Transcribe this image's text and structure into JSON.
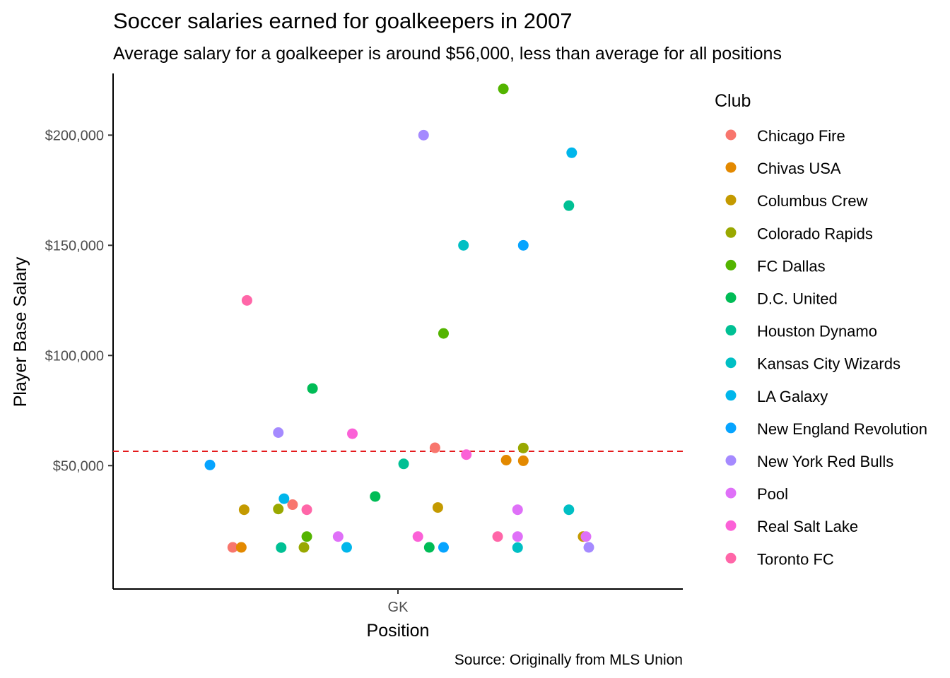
{
  "chart_data": {
    "type": "scatter",
    "title": "Soccer salaries earned for goalkeepers in 2007",
    "subtitle": "Average salary for a goalkeeper is around $56,000, less than average for all positions",
    "caption": "Source: Originally from MLS Union",
    "xlabel": "Position",
    "ylabel": "Player Base Salary",
    "x_categories": [
      "GK"
    ],
    "y_ticks": [
      50000,
      100000,
      150000,
      200000
    ],
    "y_tick_labels": [
      "$50,000",
      "$100,000",
      "$150,000",
      "$200,000"
    ],
    "ylim": [
      -6000,
      228000
    ],
    "grid": false,
    "jitter": true,
    "reference_line": {
      "y": 56500,
      "style": "dashed",
      "color": "#e41a1c"
    },
    "legend": {
      "title": "Club",
      "position": "right"
    },
    "series": [
      {
        "name": "Chicago Fire",
        "color": "#F8766D",
        "points": [
          [
            -0.58,
            12900
          ],
          [
            -0.37,
            32300
          ],
          [
            0.13,
            58100
          ]
        ]
      },
      {
        "name": "Chivas USA",
        "color": "#E38900",
        "points": [
          [
            -0.55,
            12900
          ],
          [
            0.38,
            52500
          ],
          [
            0.44,
            52200
          ]
        ]
      },
      {
        "name": "Columbus Crew",
        "color": "#C49A00",
        "points": [
          [
            -0.54,
            30000
          ],
          [
            0.14,
            31000
          ],
          [
            0.65,
            17800
          ]
        ]
      },
      {
        "name": "Colorado Rapids",
        "color": "#99A800",
        "points": [
          [
            -0.42,
            30300
          ],
          [
            -0.33,
            12900
          ],
          [
            0.44,
            58000
          ]
        ]
      },
      {
        "name": "FC Dallas",
        "color": "#53B400",
        "points": [
          [
            -0.32,
            17800
          ],
          [
            0.16,
            110000
          ],
          [
            0.37,
            221000
          ]
        ]
      },
      {
        "name": "D.C. United",
        "color": "#00BC56",
        "points": [
          [
            -0.3,
            85000
          ],
          [
            -0.08,
            36000
          ],
          [
            0.11,
            12900
          ]
        ]
      },
      {
        "name": "Houston Dynamo",
        "color": "#00C094",
        "points": [
          [
            -0.41,
            12800
          ],
          [
            0.02,
            50800
          ],
          [
            0.6,
            168000
          ]
        ]
      },
      {
        "name": "Kansas City Wizards",
        "color": "#00BFC4",
        "points": [
          [
            0.23,
            150000
          ],
          [
            0.42,
            12800
          ],
          [
            0.6,
            30000
          ]
        ]
      },
      {
        "name": "LA Galaxy",
        "color": "#00B6EB",
        "points": [
          [
            -0.4,
            35000
          ],
          [
            -0.18,
            12900
          ],
          [
            0.61,
            192000
          ]
        ]
      },
      {
        "name": "New England Revolution",
        "color": "#06A4FF",
        "points": [
          [
            -0.66,
            50300
          ],
          [
            0.16,
            12900
          ],
          [
            0.44,
            150000
          ]
        ]
      },
      {
        "name": "New York Red Bulls",
        "color": "#A58AFF",
        "points": [
          [
            -0.42,
            65000
          ],
          [
            0.09,
            200000
          ],
          [
            0.67,
            12900
          ]
        ]
      },
      {
        "name": "Pool",
        "color": "#DF70F8",
        "points": [
          [
            -0.21,
            17800
          ],
          [
            0.42,
            30000
          ],
          [
            0.42,
            17800
          ],
          [
            0.66,
            17800
          ]
        ]
      },
      {
        "name": "Real Salt Lake",
        "color": "#FB61D7",
        "points": [
          [
            -0.16,
            64500
          ],
          [
            0.07,
            17800
          ],
          [
            0.24,
            55000
          ]
        ]
      },
      {
        "name": "Toronto FC",
        "color": "#FF66A8",
        "points": [
          [
            -0.53,
            125000
          ],
          [
            -0.32,
            30000
          ],
          [
            0.35,
            17800
          ]
        ]
      }
    ]
  }
}
